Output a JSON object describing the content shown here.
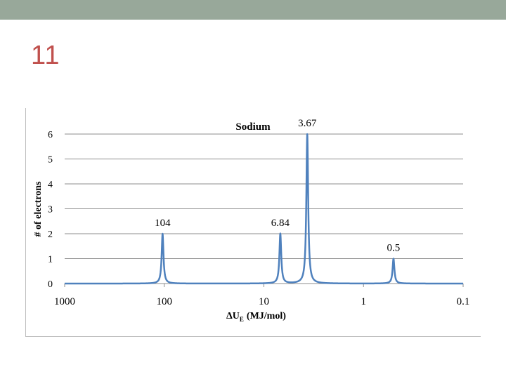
{
  "slide": {
    "number": "11",
    "top_bar_color": "#98a89a",
    "number_color": "#c0504d"
  },
  "chart_data": {
    "type": "line",
    "title": "Sodium",
    "xlabel_main": "ΔU",
    "xlabel_sub": "E",
    "xlabel_unit": "(MJ/mol)",
    "ylabel": "# of electrons",
    "x_scale": "log",
    "x_reversed": true,
    "xlim": [
      1000,
      0.1
    ],
    "ylim": [
      0,
      6
    ],
    "x_ticks": [
      {
        "value": 1000,
        "label": "1000"
      },
      {
        "value": 100,
        "label": "100"
      },
      {
        "value": 10,
        "label": "10"
      },
      {
        "value": 1,
        "label": "1"
      },
      {
        "value": 0.1,
        "label": "0.1"
      }
    ],
    "y_ticks": [
      {
        "value": 0,
        "label": "0"
      },
      {
        "value": 1,
        "label": "1"
      },
      {
        "value": 2,
        "label": "2"
      },
      {
        "value": 3,
        "label": "3"
      },
      {
        "value": 4,
        "label": "4"
      },
      {
        "value": 5,
        "label": "5"
      },
      {
        "value": 6,
        "label": "6"
      }
    ],
    "grid": true,
    "line_color": "#4f81bd",
    "peaks": [
      {
        "x": 104,
        "y": 2,
        "label": "104"
      },
      {
        "x": 6.84,
        "y": 2,
        "label": "6.84"
      },
      {
        "x": 3.67,
        "y": 6,
        "label": "3.67"
      },
      {
        "x": 0.5,
        "y": 1,
        "label": "0.5"
      }
    ]
  }
}
